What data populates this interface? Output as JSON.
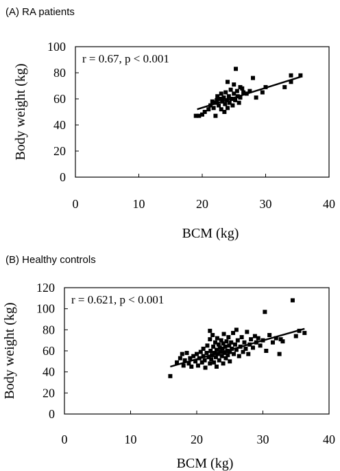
{
  "chart_data": [
    {
      "type": "scatter",
      "panel_label": "(A) RA patients",
      "annotation": "r = 0.67, p < 0.001",
      "xlabel": "BCM (kg)",
      "ylabel": "Body weight (kg)",
      "xlim": [
        0,
        40
      ],
      "ylim": [
        0,
        100
      ],
      "xticks": [
        "0",
        "10",
        "20",
        "30",
        "40"
      ],
      "yticks": [
        "0",
        "20",
        "40",
        "60",
        "80",
        "100"
      ],
      "grid": false,
      "trendline": [
        [
          19.2,
          52
        ],
        [
          35.6,
          77
        ]
      ],
      "points": [
        [
          19,
          47
        ],
        [
          19.5,
          47
        ],
        [
          20,
          48
        ],
        [
          20.4,
          50
        ],
        [
          21,
          52
        ],
        [
          21.3,
          55
        ],
        [
          21.6,
          58
        ],
        [
          21.8,
          53
        ],
        [
          22,
          57
        ],
        [
          22.1,
          47
        ],
        [
          22.3,
          59
        ],
        [
          22.4,
          62
        ],
        [
          22.6,
          55
        ],
        [
          22.8,
          60
        ],
        [
          23,
          52
        ],
        [
          23,
          64
        ],
        [
          23.2,
          58
        ],
        [
          23.4,
          61
        ],
        [
          23.5,
          50
        ],
        [
          23.6,
          56
        ],
        [
          23.7,
          65
        ],
        [
          23.9,
          59
        ],
        [
          24,
          73
        ],
        [
          24,
          53
        ],
        [
          24.2,
          62
        ],
        [
          24.3,
          57
        ],
        [
          24.5,
          67
        ],
        [
          24.6,
          60
        ],
        [
          24.8,
          55
        ],
        [
          25,
          64
        ],
        [
          25,
          71
        ],
        [
          25.2,
          59
        ],
        [
          25.3,
          83
        ],
        [
          25.5,
          66
        ],
        [
          25.6,
          62
        ],
        [
          25.8,
          57
        ],
        [
          26,
          69
        ],
        [
          26,
          61
        ],
        [
          26.3,
          68
        ],
        [
          26.5,
          65
        ],
        [
          27,
          64
        ],
        [
          27.5,
          66
        ],
        [
          28,
          76
        ],
        [
          28.5,
          61
        ],
        [
          29.5,
          65
        ],
        [
          30,
          69
        ],
        [
          33,
          69
        ],
        [
          34,
          73
        ],
        [
          34,
          78
        ],
        [
          35.5,
          78
        ]
      ]
    },
    {
      "type": "scatter",
      "panel_label": "(B) Healthy controls",
      "annotation": "r = 0.621, p < 0.001",
      "xlabel": "BCM (kg)",
      "ylabel": "Body weight (kg)",
      "xlim": [
        0,
        40
      ],
      "ylim": [
        0,
        120
      ],
      "xticks": [
        "0",
        "10",
        "20",
        "30",
        "40"
      ],
      "yticks": [
        "0",
        "20",
        "40",
        "60",
        "80",
        "100",
        "120"
      ],
      "grid": false,
      "trendline": [
        [
          16,
          45
        ],
        [
          36.3,
          81
        ]
      ],
      "points": [
        [
          16,
          36
        ],
        [
          17,
          49
        ],
        [
          17.5,
          53
        ],
        [
          17.8,
          57
        ],
        [
          18,
          46
        ],
        [
          18.2,
          51
        ],
        [
          18.5,
          58
        ],
        [
          18.8,
          48
        ],
        [
          19,
          53
        ],
        [
          19.2,
          45
        ],
        [
          19.5,
          55
        ],
        [
          19.8,
          50
        ],
        [
          20,
          57
        ],
        [
          20.2,
          46
        ],
        [
          20.4,
          53
        ],
        [
          20.6,
          59
        ],
        [
          20.8,
          49
        ],
        [
          21,
          55
        ],
        [
          21,
          62
        ],
        [
          21.2,
          51
        ],
        [
          21.3,
          44
        ],
        [
          21.5,
          58
        ],
        [
          21.6,
          65
        ],
        [
          21.8,
          54
        ],
        [
          22,
          48
        ],
        [
          22,
          71
        ],
        [
          22,
          79
        ],
        [
          22.1,
          60
        ],
        [
          22.2,
          52
        ],
        [
          22.3,
          56
        ],
        [
          22.4,
          75
        ],
        [
          22.5,
          64
        ],
        [
          22.6,
          49
        ],
        [
          22.7,
          58
        ],
        [
          22.8,
          68
        ],
        [
          22.9,
          54
        ],
        [
          23,
          61
        ],
        [
          23,
          45
        ],
        [
          23.1,
          72
        ],
        [
          23.2,
          57
        ],
        [
          23.3,
          66
        ],
        [
          23.4,
          51
        ],
        [
          23.5,
          63
        ],
        [
          23.6,
          59
        ],
        [
          23.7,
          70
        ],
        [
          23.8,
          55
        ],
        [
          23.9,
          62
        ],
        [
          24,
          48
        ],
        [
          24,
          67
        ],
        [
          24.1,
          76
        ],
        [
          24.2,
          58
        ],
        [
          24.3,
          64
        ],
        [
          24.4,
          53
        ],
        [
          24.5,
          69
        ],
        [
          24.6,
          60
        ],
        [
          24.7,
          56
        ],
        [
          24.8,
          73
        ],
        [
          24.9,
          65
        ],
        [
          25,
          59
        ],
        [
          25,
          50
        ],
        [
          25.2,
          68
        ],
        [
          25.3,
          62
        ],
        [
          25.5,
          77
        ],
        [
          25.6,
          57
        ],
        [
          25.8,
          66
        ],
        [
          26,
          80
        ],
        [
          26,
          61
        ],
        [
          26.2,
          70
        ],
        [
          26.4,
          55
        ],
        [
          26.6,
          64
        ],
        [
          26.8,
          73
        ],
        [
          27,
          59
        ],
        [
          27.2,
          68
        ],
        [
          27.4,
          62
        ],
        [
          27.6,
          78
        ],
        [
          27.8,
          57
        ],
        [
          28,
          66
        ],
        [
          28.2,
          71
        ],
        [
          28.5,
          63
        ],
        [
          28.8,
          74
        ],
        [
          29,
          68
        ],
        [
          29.3,
          72
        ],
        [
          29.6,
          65
        ],
        [
          30,
          70
        ],
        [
          30.3,
          97
        ],
        [
          30.5,
          60
        ],
        [
          31,
          75
        ],
        [
          31.5,
          68
        ],
        [
          32,
          72
        ],
        [
          32.5,
          57
        ],
        [
          32.7,
          71
        ],
        [
          33,
          69
        ],
        [
          34.5,
          108
        ],
        [
          35,
          74
        ],
        [
          35.5,
          79
        ],
        [
          36.3,
          77
        ]
      ]
    }
  ]
}
